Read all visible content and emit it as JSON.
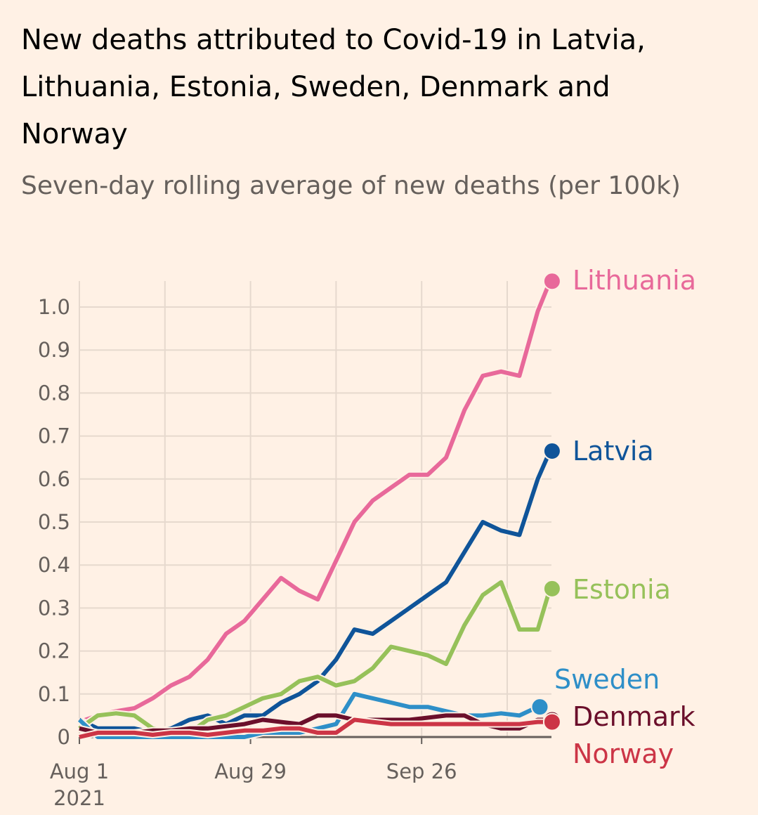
{
  "chart_data": {
    "type": "line",
    "title": "New deaths attributed to Covid-19 in Latvia, Lithuania, Estonia, Sweden, Denmark and Norway",
    "title_lines": [
      "New deaths attributed to Covid-19 in Latvia,",
      "Lithuania, Estonia, Sweden, Denmark and",
      "Norway"
    ],
    "subtitle": "Seven-day rolling average of new deaths (per 100k)",
    "xlabel": "",
    "ylabel": "",
    "ylim": [
      0,
      1.06
    ],
    "xlim": [
      "2021-08-01",
      "2021-10-17"
    ],
    "grid": true,
    "legend": "direct labels at line ends",
    "y_ticks": [
      "0",
      "0.1",
      "0.2",
      "0.3",
      "0.4",
      "0.5",
      "0.6",
      "0.7",
      "0.8",
      "0.9",
      "1.0"
    ],
    "x_ticks": [
      {
        "date": "2021-08-01",
        "label": "Aug 1",
        "sublabel": "2021"
      },
      {
        "date": "2021-08-29",
        "label": "Aug 29",
        "sublabel": ""
      },
      {
        "date": "2021-09-26",
        "label": "Sep 26",
        "sublabel": ""
      }
    ],
    "x_gridlines": [
      "2021-08-01",
      "2021-08-15",
      "2021-08-29",
      "2021-09-12",
      "2021-09-26",
      "2021-10-10"
    ],
    "x": [
      "2021-08-01",
      "2021-08-04",
      "2021-08-07",
      "2021-08-10",
      "2021-08-13",
      "2021-08-16",
      "2021-08-19",
      "2021-08-22",
      "2021-08-25",
      "2021-08-28",
      "2021-08-31",
      "2021-09-03",
      "2021-09-06",
      "2021-09-09",
      "2021-09-12",
      "2021-09-15",
      "2021-09-18",
      "2021-09-21",
      "2021-09-24",
      "2021-09-27",
      "2021-09-30",
      "2021-10-03",
      "2021-10-06",
      "2021-10-09",
      "2021-10-12",
      "2021-10-15",
      "2021-10-17"
    ],
    "series": [
      {
        "name": "Lithuania",
        "color": "#e8699a",
        "values": [
          0.035,
          0.05,
          0.06,
          0.067,
          0.09,
          0.12,
          0.14,
          0.18,
          0.24,
          0.27,
          0.32,
          0.37,
          0.34,
          0.32,
          0.41,
          0.5,
          0.55,
          0.58,
          0.61,
          0.61,
          0.65,
          0.76,
          0.84,
          0.85,
          0.84,
          0.99,
          1.06
        ]
      },
      {
        "name": "Latvia",
        "color": "#0f5499",
        "values": [
          0.04,
          0.02,
          0.02,
          0.02,
          0.01,
          0.02,
          0.04,
          0.05,
          0.03,
          0.05,
          0.05,
          0.08,
          0.1,
          0.13,
          0.18,
          0.25,
          0.24,
          0.27,
          0.3,
          0.33,
          0.36,
          0.43,
          0.5,
          0.48,
          0.47,
          0.6,
          0.665
        ]
      },
      {
        "name": "Estonia",
        "color": "#96c15a",
        "values": [
          0.02,
          0.05,
          0.055,
          0.05,
          0.02,
          0.01,
          0.01,
          0.04,
          0.05,
          0.07,
          0.09,
          0.1,
          0.13,
          0.14,
          0.12,
          0.13,
          0.16,
          0.21,
          0.2,
          0.19,
          0.17,
          0.26,
          0.33,
          0.36,
          0.25,
          0.25,
          0.345
        ]
      },
      {
        "name": "Sweden",
        "color": "#2e8fc8",
        "values": [
          0.04,
          0.0,
          0.0,
          0.0,
          0.0,
          0.0,
          0.0,
          0.0,
          0.0,
          0.0,
          0.01,
          0.01,
          0.01,
          0.02,
          0.03,
          0.1,
          0.09,
          0.08,
          0.07,
          0.07,
          0.06,
          0.05,
          0.05,
          0.055,
          0.05,
          0.07,
          null
        ]
      },
      {
        "name": "Denmark",
        "color": "#6b0f2b",
        "values": [
          0.02,
          0.01,
          0.01,
          0.01,
          0.015,
          0.015,
          0.02,
          0.02,
          0.025,
          0.03,
          0.04,
          0.035,
          0.03,
          0.05,
          0.05,
          0.04,
          0.04,
          0.04,
          0.04,
          0.045,
          0.05,
          0.05,
          0.03,
          0.02,
          0.02,
          0.04,
          0.04
        ]
      },
      {
        "name": "Norway",
        "color": "#cc3546",
        "values": [
          0.0,
          0.01,
          0.01,
          0.01,
          0.005,
          0.01,
          0.01,
          0.005,
          0.01,
          0.015,
          0.015,
          0.02,
          0.02,
          0.01,
          0.01,
          0.04,
          0.035,
          0.03,
          0.03,
          0.03,
          0.03,
          0.03,
          0.03,
          0.03,
          0.03,
          0.035,
          0.035
        ]
      }
    ]
  }
}
